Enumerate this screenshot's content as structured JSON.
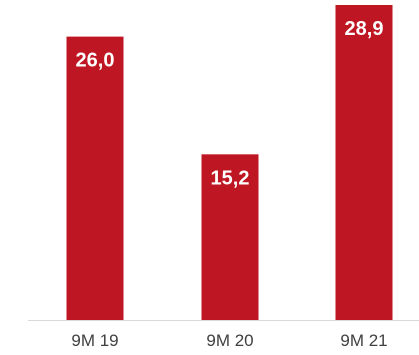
{
  "chart_data": {
    "type": "bar",
    "categories": [
      "9M 19",
      "9M 20",
      "9M 21"
    ],
    "values": [
      26.0,
      15.2,
      28.9
    ],
    "value_labels": [
      "26,0",
      "15,2",
      "28,9"
    ],
    "title": "",
    "xlabel": "",
    "ylabel": "",
    "ylim": [
      0,
      28.9
    ],
    "grid": false,
    "legend": "none",
    "bar_color": "#BE1622",
    "axis_color": "#D9D9D9",
    "label_color": "#FFFFFF",
    "tick_color": "#404040"
  }
}
